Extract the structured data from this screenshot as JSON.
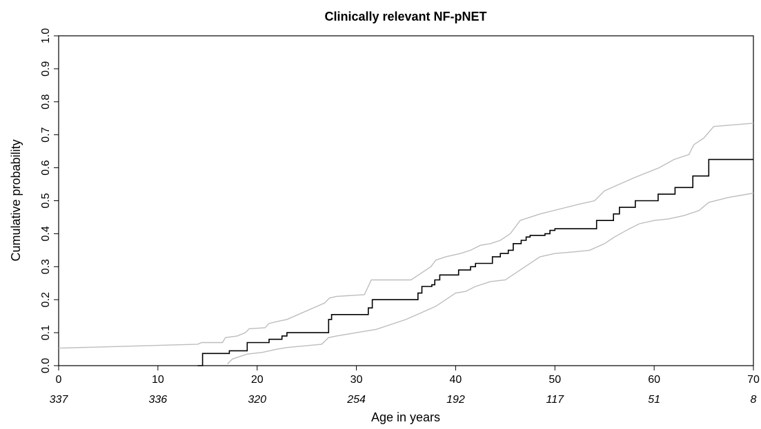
{
  "chart_data": {
    "type": "line",
    "title": "Clinically relevant NF-pNET",
    "xlabel": "Age in years",
    "ylabel": "Cumulative probability",
    "xlim": [
      0,
      70
    ],
    "ylim": [
      0,
      1
    ],
    "x_ticks": [
      0,
      10,
      20,
      30,
      40,
      50,
      60,
      70
    ],
    "y_ticks": [
      "0.0",
      "0.1",
      "0.2",
      "0.3",
      "0.4",
      "0.5",
      "0.6",
      "0.7",
      "0.8",
      "0.9",
      "1.0"
    ],
    "number_at_risk": [
      {
        "x": 0,
        "n": "337"
      },
      {
        "x": 10,
        "n": "336"
      },
      {
        "x": 20,
        "n": "320"
      },
      {
        "x": 30,
        "n": "254"
      },
      {
        "x": 40,
        "n": "192"
      },
      {
        "x": 50,
        "n": "117"
      },
      {
        "x": 60,
        "n": "51"
      },
      {
        "x": 70,
        "n": "8"
      }
    ],
    "colors": {
      "estimate": "#000000",
      "confidence": "#bdbdbd",
      "axes": "#000000"
    },
    "grid": false,
    "series": [
      {
        "role": "estimate",
        "points": [
          [
            14.0,
            0
          ],
          [
            14.5,
            0.037
          ],
          [
            16.8,
            0.037
          ],
          [
            17.2,
            0.045
          ],
          [
            18.8,
            0.045
          ],
          [
            19.0,
            0.07
          ],
          [
            21.0,
            0.07
          ],
          [
            21.2,
            0.08
          ],
          [
            22.2,
            0.08
          ],
          [
            22.5,
            0.09
          ],
          [
            23.0,
            0.1
          ],
          [
            27.0,
            0.1
          ],
          [
            27.2,
            0.14
          ],
          [
            27.5,
            0.155
          ],
          [
            31.0,
            0.155
          ],
          [
            31.2,
            0.175
          ],
          [
            31.6,
            0.2
          ],
          [
            36.0,
            0.2
          ],
          [
            36.2,
            0.22
          ],
          [
            36.6,
            0.24
          ],
          [
            37.6,
            0.245
          ],
          [
            37.9,
            0.26
          ],
          [
            38.4,
            0.275
          ],
          [
            40.0,
            0.275
          ],
          [
            40.3,
            0.29
          ],
          [
            41.2,
            0.29
          ],
          [
            41.5,
            0.3
          ],
          [
            42.0,
            0.31
          ],
          [
            43.4,
            0.31
          ],
          [
            43.7,
            0.33
          ],
          [
            44.5,
            0.34
          ],
          [
            45.3,
            0.35
          ],
          [
            45.8,
            0.37
          ],
          [
            46.6,
            0.38
          ],
          [
            47.1,
            0.39
          ],
          [
            47.5,
            0.395
          ],
          [
            49.0,
            0.4
          ],
          [
            49.5,
            0.41
          ],
          [
            50.0,
            0.415
          ],
          [
            54.0,
            0.415
          ],
          [
            54.2,
            0.44
          ],
          [
            55.6,
            0.44
          ],
          [
            55.9,
            0.46
          ],
          [
            56.5,
            0.48
          ],
          [
            57.5,
            0.48
          ],
          [
            58.1,
            0.5
          ],
          [
            59.8,
            0.5
          ],
          [
            60.4,
            0.52
          ],
          [
            61.7,
            0.52
          ],
          [
            62.1,
            0.54
          ],
          [
            63.6,
            0.54
          ],
          [
            63.9,
            0.575
          ],
          [
            65.3,
            0.575
          ],
          [
            65.5,
            0.625
          ],
          [
            70.0,
            0.625
          ]
        ]
      },
      {
        "role": "upper-confidence",
        "points": [
          [
            0,
            0.053
          ],
          [
            14.0,
            0.065
          ],
          [
            14.4,
            0.07
          ],
          [
            16.5,
            0.07
          ],
          [
            16.8,
            0.085
          ],
          [
            18.0,
            0.09
          ],
          [
            18.8,
            0.1
          ],
          [
            19.2,
            0.112
          ],
          [
            20.8,
            0.115
          ],
          [
            21.2,
            0.128
          ],
          [
            22.2,
            0.135
          ],
          [
            23.0,
            0.14
          ],
          [
            26.8,
            0.19
          ],
          [
            27.3,
            0.205
          ],
          [
            28.0,
            0.21
          ],
          [
            30.8,
            0.215
          ],
          [
            31.5,
            0.26
          ],
          [
            35.5,
            0.26
          ],
          [
            36.5,
            0.28
          ],
          [
            37.5,
            0.3
          ],
          [
            38.0,
            0.32
          ],
          [
            39.0,
            0.33
          ],
          [
            40.5,
            0.34
          ],
          [
            41.5,
            0.35
          ],
          [
            42.5,
            0.365
          ],
          [
            43.5,
            0.37
          ],
          [
            44.5,
            0.38
          ],
          [
            45.5,
            0.4
          ],
          [
            46.5,
            0.44
          ],
          [
            47.5,
            0.45
          ],
          [
            48.5,
            0.46
          ],
          [
            50.5,
            0.475
          ],
          [
            52.5,
            0.49
          ],
          [
            54.0,
            0.5
          ],
          [
            55.0,
            0.53
          ],
          [
            56.5,
            0.55
          ],
          [
            58.0,
            0.57
          ],
          [
            60.5,
            0.6
          ],
          [
            62.0,
            0.625
          ],
          [
            63.5,
            0.64
          ],
          [
            64.0,
            0.67
          ],
          [
            65.0,
            0.69
          ],
          [
            66.0,
            0.725
          ],
          [
            68.0,
            0.73
          ],
          [
            70.0,
            0.735
          ]
        ]
      },
      {
        "role": "lower-confidence",
        "points": [
          [
            17.0,
            0.005
          ],
          [
            17.5,
            0.02
          ],
          [
            19.0,
            0.035
          ],
          [
            20.5,
            0.04
          ],
          [
            22.0,
            0.05
          ],
          [
            23.0,
            0.055
          ],
          [
            26.5,
            0.065
          ],
          [
            27.2,
            0.085
          ],
          [
            28.0,
            0.09
          ],
          [
            30.0,
            0.1
          ],
          [
            32.0,
            0.11
          ],
          [
            35.0,
            0.14
          ],
          [
            36.5,
            0.16
          ],
          [
            38.0,
            0.18
          ],
          [
            39.0,
            0.2
          ],
          [
            40.0,
            0.22
          ],
          [
            41.0,
            0.225
          ],
          [
            42.0,
            0.24
          ],
          [
            43.5,
            0.255
          ],
          [
            45.0,
            0.26
          ],
          [
            46.0,
            0.28
          ],
          [
            47.0,
            0.3
          ],
          [
            48.5,
            0.33
          ],
          [
            50.0,
            0.34
          ],
          [
            52.0,
            0.345
          ],
          [
            53.5,
            0.35
          ],
          [
            55.0,
            0.37
          ],
          [
            56.0,
            0.39
          ],
          [
            57.5,
            0.415
          ],
          [
            58.5,
            0.43
          ],
          [
            60.0,
            0.44
          ],
          [
            61.5,
            0.445
          ],
          [
            63.0,
            0.455
          ],
          [
            64.5,
            0.47
          ],
          [
            65.5,
            0.495
          ],
          [
            67.5,
            0.51
          ],
          [
            70.0,
            0.523
          ]
        ]
      }
    ]
  }
}
